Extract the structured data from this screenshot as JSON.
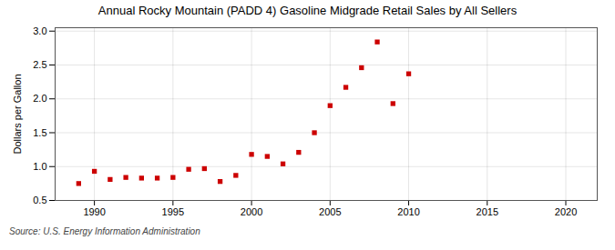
{
  "chart_data": {
    "type": "scatter",
    "title": "Annual Rocky Mountain (PADD 4) Gasoline Midgrade Retail Sales by All Sellers",
    "ylabel": "Dollars per Gallon",
    "source": "Source: U.S. Energy Information Administration",
    "x": [
      1989,
      1990,
      1991,
      1992,
      1993,
      1994,
      1995,
      1996,
      1997,
      1998,
      1999,
      2000,
      2001,
      2002,
      2003,
      2004,
      2005,
      2006,
      2007,
      2008,
      2009,
      2010
    ],
    "values": [
      0.75,
      0.93,
      0.81,
      0.84,
      0.83,
      0.83,
      0.84,
      0.96,
      0.97,
      0.78,
      0.87,
      1.18,
      1.15,
      1.04,
      1.21,
      1.5,
      1.9,
      2.17,
      2.46,
      2.84,
      1.93,
      2.37
    ],
    "color": "#cc0000",
    "marker": "square",
    "xlim": [
      1987.5,
      2022
    ],
    "xticks": [
      1990,
      1995,
      2000,
      2005,
      2010,
      2015,
      2020
    ],
    "ylim": [
      0.5,
      3.05
    ],
    "yticks": [
      0.5,
      {
        "value": 1,
        "label": "1.0"
      },
      1.5,
      {
        "value": 2,
        "label": "2.0"
      },
      2.5,
      {
        "value": 3,
        "label": "3.0"
      }
    ],
    "grid": true
  }
}
